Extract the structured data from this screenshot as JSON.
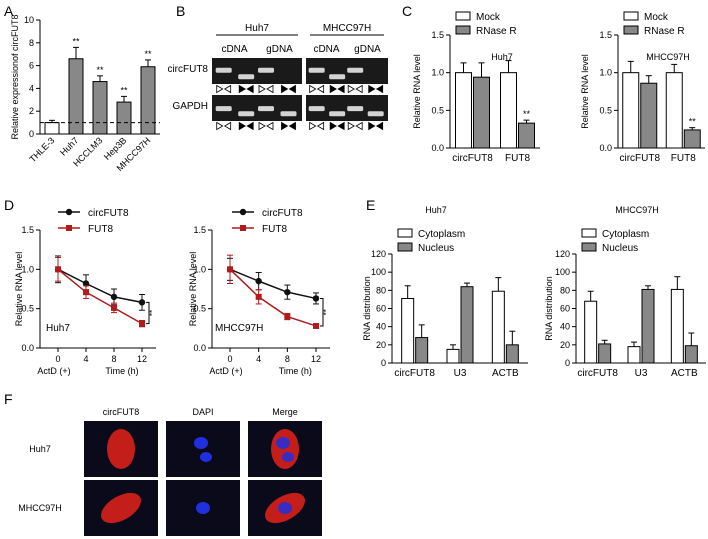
{
  "panels": {
    "a": "A",
    "b": "B",
    "c": "C",
    "d": "D",
    "e": "E",
    "f": "F"
  },
  "gel": {
    "groups": [
      "Huh7",
      "MHCC97H"
    ],
    "lanes": [
      "cDNA",
      "gDNA"
    ],
    "rows": [
      "circFUT8",
      "GAPDH"
    ],
    "colors": {
      "background": "#1a1a1a",
      "band": "#e8e8e8"
    }
  },
  "micro": {
    "columns": [
      "circFUT8",
      "DAPI",
      "Merge"
    ],
    "rows": [
      "Huh7",
      "MHCC97H"
    ],
    "colors": {
      "background": "#0a0a1a",
      "red": "#d8201c",
      "blue": "#2030e0"
    }
  },
  "significance": "**",
  "chart_data": [
    {
      "id": "A",
      "type": "bar",
      "ylabel": "Relative expressionof circFUT8",
      "categories": [
        "THLE-3",
        "Huh7",
        "HCCLM3",
        "Hep3B",
        "MHCC97H"
      ],
      "values": [
        1.0,
        6.6,
        4.6,
        2.8,
        5.9
      ],
      "errors": [
        0.2,
        1.0,
        0.5,
        0.5,
        0.6
      ],
      "fills": [
        "#ffffff",
        "#888888",
        "#888888",
        "#888888",
        "#888888"
      ],
      "sig": [
        "",
        "**",
        "**",
        "**",
        "**"
      ],
      "ylim": [
        0,
        10
      ],
      "yticks": [
        "0",
        "2",
        "4",
        "6",
        "8",
        "10"
      ],
      "hline": 1,
      "grid": false
    },
    {
      "id": "C1",
      "type": "bar",
      "subtitle": "Huh7",
      "ylabel": "Relative RNA level",
      "categories": [
        "circFUT8",
        "FUT8"
      ],
      "series": [
        {
          "name": "Mock",
          "values": [
            1.0,
            1.0
          ],
          "errors": [
            0.13,
            0.16
          ],
          "color": "#ffffff"
        },
        {
          "name": "RNase R",
          "values": [
            0.94,
            0.33
          ],
          "errors": [
            0.19,
            0.04
          ],
          "color": "#888888"
        }
      ],
      "sig": [
        [
          "",
          ""
        ],
        [
          "",
          "**"
        ]
      ],
      "ylim": [
        0,
        1.5
      ],
      "yticks": [
        "0.0",
        "0.5",
        "1.0",
        "1.5"
      ],
      "legend": "top"
    },
    {
      "id": "C2",
      "type": "bar",
      "subtitle": "MHCC97H",
      "ylabel": "Relative RNA level",
      "categories": [
        "circFUT8",
        "FUT8"
      ],
      "series": [
        {
          "name": "Mock",
          "values": [
            1.0,
            1.0
          ],
          "errors": [
            0.15,
            0.11
          ],
          "color": "#ffffff"
        },
        {
          "name": "RNase R",
          "values": [
            0.86,
            0.24
          ],
          "errors": [
            0.1,
            0.03
          ],
          "color": "#888888"
        }
      ],
      "sig": [
        [
          "",
          ""
        ],
        [
          "",
          "**"
        ]
      ],
      "ylim": [
        0,
        1.5
      ],
      "yticks": [
        "0.0",
        "0.5",
        "1.0",
        "1.5"
      ],
      "legend": "top"
    },
    {
      "id": "D1",
      "type": "line",
      "annotation": "Huh7",
      "ylabel": "Relative RNA level",
      "xlabel": "Time (h)",
      "xnote": "ActD (+)",
      "x": [
        0,
        4,
        8,
        12
      ],
      "xticks": [
        "0",
        "4",
        "8",
        "12"
      ],
      "series": [
        {
          "name": "circFUT8",
          "values": [
            1.0,
            0.82,
            0.65,
            0.58
          ],
          "errors": [
            0.17,
            0.11,
            0.1,
            0.1
          ],
          "color": "#111111",
          "marker": "circle"
        },
        {
          "name": "FUT8",
          "values": [
            1.0,
            0.71,
            0.51,
            0.31
          ],
          "errors": [
            0.15,
            0.08,
            0.06,
            0.04
          ],
          "color": "#b01c1c",
          "marker": "square"
        }
      ],
      "sig": "**",
      "ylim": [
        0,
        1.5
      ],
      "yticks": [
        "0.0",
        "0.5",
        "1.0",
        "1.5"
      ],
      "legend": "top"
    },
    {
      "id": "D2",
      "type": "line",
      "annotation": "MHCC97H",
      "ylabel": "Relative RNA level",
      "xlabel": "Time (h)",
      "xnote": "ActD (+)",
      "x": [
        0,
        4,
        8,
        12
      ],
      "xticks": [
        "0",
        "4",
        "8",
        "12"
      ],
      "series": [
        {
          "name": "circFUT8",
          "values": [
            1.0,
            0.85,
            0.71,
            0.63
          ],
          "errors": [
            0.14,
            0.11,
            0.09,
            0.07
          ],
          "color": "#111111",
          "marker": "circle"
        },
        {
          "name": "FUT8",
          "values": [
            1.0,
            0.65,
            0.4,
            0.28
          ],
          "errors": [
            0.18,
            0.09,
            0.04,
            0.02
          ],
          "color": "#b01c1c",
          "marker": "square"
        }
      ],
      "sig": "**",
      "ylim": [
        0,
        1.5
      ],
      "yticks": [
        "0.0",
        "0.5",
        "1.0",
        "1.5"
      ],
      "legend": "top"
    },
    {
      "id": "E1",
      "type": "bar",
      "subtitle": "Huh7",
      "ylabel": "RNA distribution",
      "categories": [
        "circFUT8",
        "U3",
        "ACTB"
      ],
      "series": [
        {
          "name": "Cytoplasm",
          "values": [
            71,
            15,
            79
          ],
          "errors": [
            14,
            5,
            15
          ],
          "color": "#ffffff"
        },
        {
          "name": "Nucleus",
          "values": [
            28,
            84,
            20
          ],
          "errors": [
            14,
            4,
            15
          ],
          "color": "#888888"
        }
      ],
      "ylim": [
        0,
        120
      ],
      "yticks": [
        "0",
        "20",
        "40",
        "60",
        "80",
        "100",
        "120"
      ],
      "legend": "top"
    },
    {
      "id": "E2",
      "type": "bar",
      "subtitle": "MHCC97H",
      "ylabel": "RNA distribution",
      "categories": [
        "circFUT8",
        "U3",
        "ACTB"
      ],
      "series": [
        {
          "name": "Cytoplasm",
          "values": [
            68,
            18,
            81
          ],
          "errors": [
            11,
            5,
            14
          ],
          "color": "#ffffff"
        },
        {
          "name": "Nucleus",
          "values": [
            21,
            81,
            19
          ],
          "errors": [
            4,
            4,
            14
          ],
          "color": "#888888"
        }
      ],
      "ylim": [
        0,
        120
      ],
      "yticks": [
        "0",
        "20",
        "40",
        "60",
        "80",
        "100",
        "120"
      ],
      "legend": "top"
    }
  ]
}
